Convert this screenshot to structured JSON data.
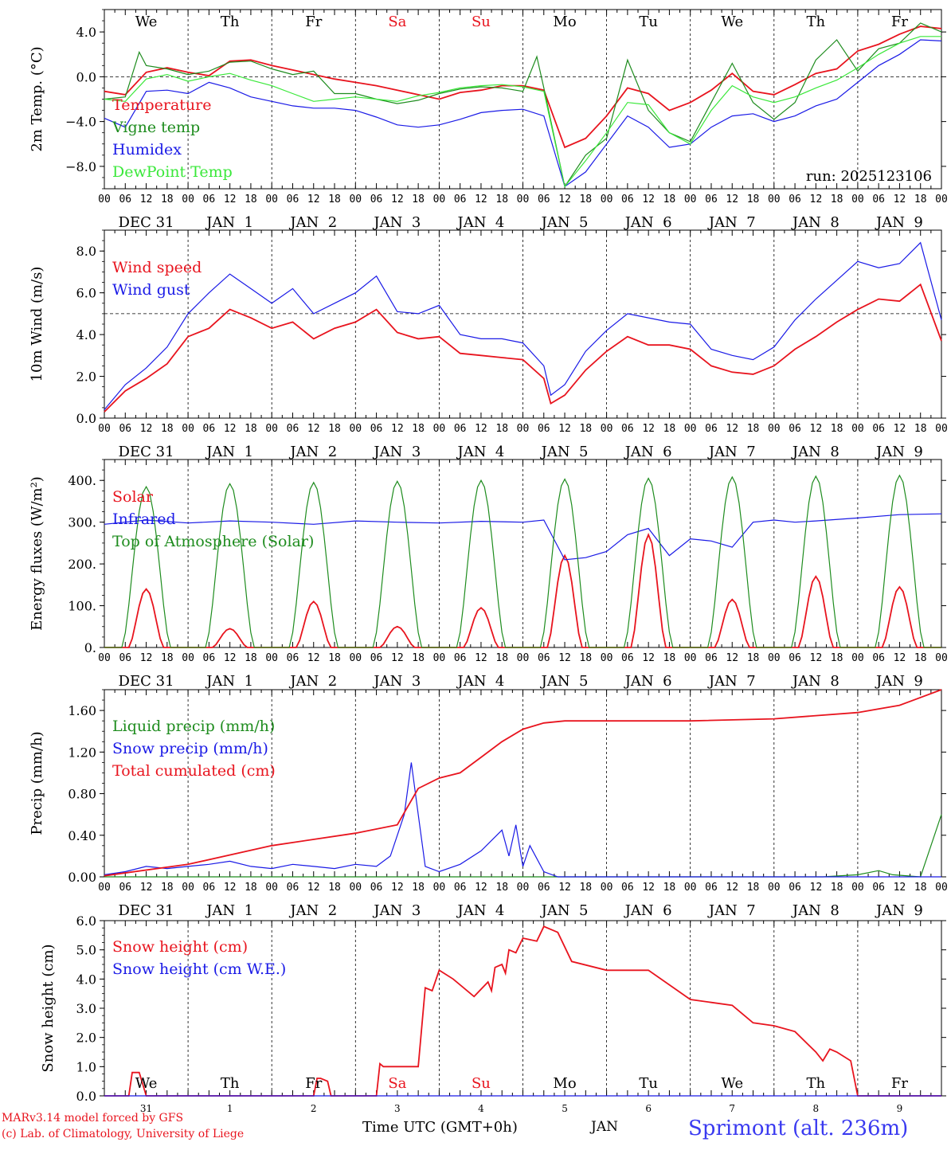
{
  "colors": {
    "red": "#e8141e",
    "green": "#1e8c1e",
    "blue": "#1a1ae6",
    "lightgreen": "#3ae83a",
    "axis": "#000000",
    "title_blue": "#3a3af0"
  },
  "weekday_labels": [
    {
      "label": "We",
      "color": "#000000"
    },
    {
      "label": "Th",
      "color": "#000000"
    },
    {
      "label": "Fr",
      "color": "#000000"
    },
    {
      "label": "Sa",
      "color": "#e8141e"
    },
    {
      "label": "Su",
      "color": "#e8141e"
    },
    {
      "label": "Mo",
      "color": "#000000"
    },
    {
      "label": "Tu",
      "color": "#000000"
    },
    {
      "label": "We",
      "color": "#000000"
    },
    {
      "label": "Th",
      "color": "#000000"
    },
    {
      "label": "Fr",
      "color": "#000000"
    }
  ],
  "hour_ticks": [
    "00",
    "06",
    "12",
    "18"
  ],
  "date_labels": [
    "DEC 31",
    "JAN  1",
    "JAN  2",
    "JAN  3",
    "JAN  4",
    "JAN  5",
    "JAN  6",
    "JAN  7",
    "JAN  8",
    "JAN  9"
  ],
  "bottom_day_numbers": [
    "31",
    "1",
    "2",
    "3",
    "4",
    "5",
    "6",
    "7",
    "8",
    "9"
  ],
  "footer": {
    "model": "MARv3.14 model forced by GFS",
    "copyright": "(c) Lab. of Climatology, University of Liege",
    "xlabel": "Time UTC (GMT+0h)",
    "month": "JAN",
    "station": "Sprimont (alt. 236m)"
  },
  "chart_data": [
    {
      "type": "line",
      "id": "temp",
      "ylabel": "2m Temp. (°C)",
      "ylim": [
        -10,
        6
      ],
      "yticks": [
        4,
        0,
        -4,
        -8
      ],
      "ytick_labels": [
        "4.0",
        "0.0",
        "−4.0",
        "−8.0"
      ],
      "dashed_hline": 0,
      "run_label": "run: 2025123106",
      "x_unit": "hours since DEC 31 00 UTC",
      "series": [
        {
          "name": "Temperature",
          "color": "#e8141e",
          "x": [
            0,
            6,
            12,
            18,
            24,
            30,
            36,
            42,
            48,
            54,
            60,
            66,
            72,
            78,
            84,
            90,
            96,
            102,
            108,
            114,
            120,
            126,
            132,
            138,
            144,
            150,
            156,
            162,
            168,
            174,
            180,
            186,
            192,
            198,
            204,
            210,
            216,
            222,
            228,
            234,
            240
          ],
          "values": [
            -1.3,
            -1.6,
            0.4,
            0.8,
            0.4,
            0.1,
            1.4,
            1.5,
            1.0,
            0.6,
            0.2,
            -0.2,
            -0.5,
            -0.8,
            -1.2,
            -1.6,
            -2.0,
            -1.4,
            -1.2,
            -0.8,
            -0.8,
            -1.2,
            -6.3,
            -5.5,
            -3.5,
            -1.0,
            -1.5,
            -3.0,
            -2.3,
            -1.2,
            0.3,
            -1.3,
            -1.6,
            -0.7,
            0.3,
            0.7,
            2.3,
            2.9,
            3.8,
            4.5,
            4.3
          ]
        },
        {
          "name": "Vigne temp",
          "color": "#1e8c1e",
          "x": [
            0,
            6,
            10,
            12,
            18,
            24,
            30,
            36,
            42,
            48,
            54,
            60,
            66,
            72,
            78,
            84,
            90,
            96,
            102,
            108,
            114,
            120,
            124,
            126,
            132,
            138,
            144,
            150,
            156,
            162,
            168,
            174,
            180,
            186,
            192,
            198,
            204,
            210,
            216,
            222,
            228,
            234,
            240
          ],
          "values": [
            -2.0,
            -1.8,
            2.2,
            1.0,
            0.7,
            0.2,
            0.5,
            1.3,
            1.4,
            0.7,
            0.2,
            0.5,
            -1.5,
            -1.5,
            -2.0,
            -2.4,
            -2.1,
            -1.5,
            -1.1,
            -0.9,
            -1.0,
            -1.3,
            1.8,
            -1.0,
            -9.8,
            -7.0,
            -5.5,
            1.5,
            -3.0,
            -5.0,
            -5.8,
            -2.3,
            1.2,
            -2.3,
            -3.8,
            -2.3,
            1.5,
            3.3,
            0.5,
            2.5,
            3.0,
            4.8,
            4.0
          ]
        },
        {
          "name": "Humidex",
          "color": "#1a1ae6",
          "x": [
            0,
            6,
            12,
            18,
            24,
            30,
            36,
            42,
            48,
            54,
            60,
            66,
            72,
            78,
            84,
            90,
            96,
            102,
            108,
            114,
            120,
            126,
            132,
            138,
            144,
            150,
            156,
            162,
            168,
            174,
            180,
            186,
            192,
            198,
            204,
            210,
            216,
            222,
            228,
            234,
            240
          ],
          "values": [
            -3.7,
            -4.5,
            -1.3,
            -1.2,
            -1.5,
            -0.5,
            -1.0,
            -1.8,
            -2.2,
            -2.6,
            -2.8,
            -2.8,
            -3.0,
            -3.6,
            -4.3,
            -4.5,
            -4.3,
            -3.8,
            -3.2,
            -3.0,
            -2.9,
            -3.5,
            -9.8,
            -8.5,
            -6.0,
            -3.5,
            -4.5,
            -6.3,
            -6.0,
            -4.5,
            -3.5,
            -3.3,
            -4.0,
            -3.5,
            -2.6,
            -2.0,
            -0.5,
            1.0,
            2.0,
            3.3,
            3.2
          ]
        },
        {
          "name": "DewPoint Temp",
          "color": "#3ae83a",
          "x": [
            0,
            6,
            12,
            18,
            24,
            30,
            36,
            42,
            48,
            54,
            60,
            66,
            72,
            78,
            84,
            90,
            96,
            102,
            108,
            114,
            120,
            126,
            132,
            138,
            144,
            150,
            156,
            162,
            168,
            174,
            180,
            186,
            192,
            198,
            204,
            210,
            216,
            222,
            228,
            234,
            240
          ],
          "values": [
            -2.0,
            -2.2,
            -0.2,
            0.2,
            -0.4,
            0.0,
            0.3,
            -0.3,
            -0.8,
            -1.5,
            -2.2,
            -2.0,
            -1.8,
            -2.0,
            -2.2,
            -1.7,
            -1.4,
            -1.0,
            -0.8,
            -0.7,
            -0.9,
            -1.3,
            -9.8,
            -7.5,
            -5.0,
            -2.3,
            -2.5,
            -5.0,
            -6.0,
            -3.0,
            -0.8,
            -1.8,
            -2.3,
            -1.8,
            -1.0,
            -0.3,
            0.8,
            2.0,
            3.0,
            3.6,
            3.6
          ]
        }
      ]
    },
    {
      "type": "line",
      "id": "wind",
      "ylabel": "10m Wind (m/s)",
      "ylim": [
        0,
        9
      ],
      "yticks": [
        0,
        2,
        4,
        6,
        8
      ],
      "ytick_labels": [
        "0.0",
        "2.0",
        "4.0",
        "6.0",
        "8.0"
      ],
      "dashed_hline": 5,
      "series": [
        {
          "name": "Wind speed",
          "color": "#e8141e",
          "x": [
            0,
            6,
            12,
            18,
            24,
            30,
            36,
            42,
            48,
            54,
            60,
            66,
            72,
            78,
            84,
            90,
            96,
            102,
            108,
            114,
            120,
            126,
            128,
            132,
            138,
            144,
            150,
            156,
            162,
            168,
            174,
            180,
            186,
            192,
            198,
            204,
            210,
            216,
            222,
            228,
            234,
            240
          ],
          "values": [
            0.3,
            1.3,
            1.9,
            2.6,
            3.9,
            4.3,
            5.2,
            4.8,
            4.3,
            4.6,
            3.8,
            4.3,
            4.6,
            5.2,
            4.1,
            3.8,
            3.9,
            3.1,
            3.0,
            2.9,
            2.8,
            1.9,
            0.7,
            1.1,
            2.3,
            3.2,
            3.9,
            3.5,
            3.5,
            3.3,
            2.5,
            2.2,
            2.1,
            2.5,
            3.3,
            3.9,
            4.6,
            5.2,
            5.7,
            5.6,
            6.4,
            3.7
          ]
        },
        {
          "name": "Wind gust",
          "color": "#1a1ae6",
          "x": [
            0,
            6,
            12,
            18,
            24,
            30,
            36,
            42,
            48,
            54,
            60,
            66,
            72,
            78,
            84,
            90,
            96,
            102,
            108,
            114,
            120,
            126,
            128,
            132,
            138,
            144,
            150,
            156,
            162,
            168,
            174,
            180,
            186,
            192,
            198,
            204,
            210,
            216,
            222,
            228,
            234,
            240
          ],
          "values": [
            0.4,
            1.6,
            2.4,
            3.4,
            5.0,
            6.0,
            6.9,
            6.2,
            5.5,
            6.2,
            5.0,
            5.5,
            6.0,
            6.8,
            5.1,
            5.0,
            5.4,
            4.0,
            3.8,
            3.8,
            3.6,
            2.5,
            1.1,
            1.6,
            3.2,
            4.2,
            5.0,
            4.8,
            4.6,
            4.5,
            3.3,
            3.0,
            2.8,
            3.4,
            4.7,
            5.7,
            6.6,
            7.5,
            7.2,
            7.4,
            8.4,
            4.7
          ]
        }
      ]
    },
    {
      "type": "line",
      "id": "energy",
      "ylabel": "Energy fluxes (W/m²)",
      "ylim": [
        0,
        450
      ],
      "yticks": [
        0,
        100,
        200,
        300,
        400
      ],
      "ytick_labels": [
        "0.",
        "100.",
        "200.",
        "300.",
        "400."
      ],
      "series": [
        {
          "name": "Solar",
          "color": "#e8141e",
          "days_peak": [
            140,
            45,
            110,
            50,
            95,
            220,
            270,
            115,
            170,
            145
          ]
        },
        {
          "name": "Infrared",
          "color": "#1a1ae6",
          "x": [
            0,
            12,
            24,
            36,
            48,
            60,
            72,
            84,
            96,
            108,
            120,
            126,
            132,
            138,
            144,
            150,
            156,
            162,
            168,
            174,
            180,
            186,
            192,
            198,
            204,
            216,
            228,
            240
          ],
          "values": [
            295,
            305,
            298,
            303,
            300,
            295,
            303,
            300,
            298,
            302,
            300,
            305,
            210,
            215,
            230,
            270,
            285,
            220,
            260,
            255,
            240,
            300,
            305,
            300,
            303,
            310,
            318,
            320
          ]
        },
        {
          "name": "Top of Atmosphere (Solar)",
          "color": "#1e8c1e",
          "days_peak": [
            385,
            392,
            395,
            398,
            400,
            403,
            405,
            408,
            410,
            412
          ]
        }
      ]
    },
    {
      "type": "line",
      "id": "precip",
      "ylabel": "Precip (mm/h)",
      "ylim": [
        0,
        1.8
      ],
      "yticks": [
        0,
        0.4,
        0.8,
        1.2,
        1.6
      ],
      "ytick_labels": [
        "0.00",
        "0.40",
        "0.80",
        "1.20",
        "1.60"
      ],
      "series": [
        {
          "name": "Liquid precip (mm/h)",
          "color": "#1e8c1e",
          "x": [
            0,
            206,
            216,
            222,
            226,
            234,
            240
          ],
          "values": [
            0,
            0,
            0.02,
            0.06,
            0.02,
            0.0,
            0.6
          ]
        },
        {
          "name": "Snow precip (mm/h)",
          "color": "#1a1ae6",
          "x": [
            0,
            6,
            12,
            18,
            24,
            30,
            36,
            42,
            48,
            54,
            60,
            66,
            72,
            78,
            82,
            86,
            88,
            90,
            92,
            96,
            102,
            108,
            114,
            116,
            118,
            120,
            122,
            126,
            130,
            240
          ],
          "values": [
            0.02,
            0.05,
            0.1,
            0.08,
            0.1,
            0.12,
            0.15,
            0.1,
            0.08,
            0.12,
            0.1,
            0.08,
            0.12,
            0.1,
            0.2,
            0.6,
            1.1,
            0.6,
            0.1,
            0.05,
            0.12,
            0.25,
            0.45,
            0.2,
            0.5,
            0.1,
            0.3,
            0.05,
            0,
            0
          ]
        },
        {
          "name": "Total cumulated (cm)",
          "color": "#e8141e",
          "x": [
            0,
            24,
            48,
            72,
            84,
            90,
            96,
            102,
            108,
            114,
            120,
            126,
            132,
            144,
            168,
            192,
            216,
            228,
            240
          ],
          "values": [
            0.01,
            0.12,
            0.3,
            0.42,
            0.5,
            0.85,
            0.95,
            1.0,
            1.15,
            1.3,
            1.42,
            1.48,
            1.5,
            1.5,
            1.5,
            1.52,
            1.58,
            1.65,
            1.8
          ]
        }
      ]
    },
    {
      "type": "line",
      "id": "snow",
      "ylabel": "Snow height (cm)",
      "ylim": [
        0,
        6
      ],
      "yticks": [
        0,
        1,
        2,
        3,
        4,
        5,
        6
      ],
      "ytick_labels": [
        "0.0",
        "1.0",
        "2.0",
        "3.0",
        "4.0",
        "5.0",
        "6.0"
      ],
      "series": [
        {
          "name": "Snow height (cm)",
          "color": "#e8141e",
          "x": [
            0,
            7,
            8,
            10,
            11,
            12,
            60,
            61,
            62,
            64,
            65,
            66,
            78,
            79,
            80,
            90,
            92,
            94,
            96,
            100,
            106,
            110,
            111,
            112,
            114,
            115,
            116,
            118,
            120,
            124,
            126,
            130,
            134,
            144,
            156,
            168,
            174,
            180,
            186,
            192,
            198,
            204,
            206,
            208,
            210,
            214,
            216,
            240
          ],
          "values": [
            0,
            0,
            0.8,
            0.8,
            0.4,
            0,
            0,
            0.6,
            0.6,
            0.5,
            0,
            0,
            0,
            1.1,
            1.0,
            1.0,
            3.7,
            3.6,
            4.3,
            4.0,
            3.4,
            3.9,
            3.6,
            4.4,
            4.5,
            4.2,
            5.0,
            4.9,
            5.4,
            5.3,
            5.8,
            5.6,
            4.6,
            4.3,
            4.3,
            3.3,
            3.2,
            3.1,
            2.5,
            2.4,
            2.2,
            1.5,
            1.2,
            1.6,
            1.5,
            1.2,
            0,
            0
          ]
        },
        {
          "name": "Snow height (cm W.E.)",
          "color": "#1a1ae6",
          "x": [
            0,
            240
          ],
          "values": [
            0,
            0
          ]
        }
      ]
    }
  ]
}
